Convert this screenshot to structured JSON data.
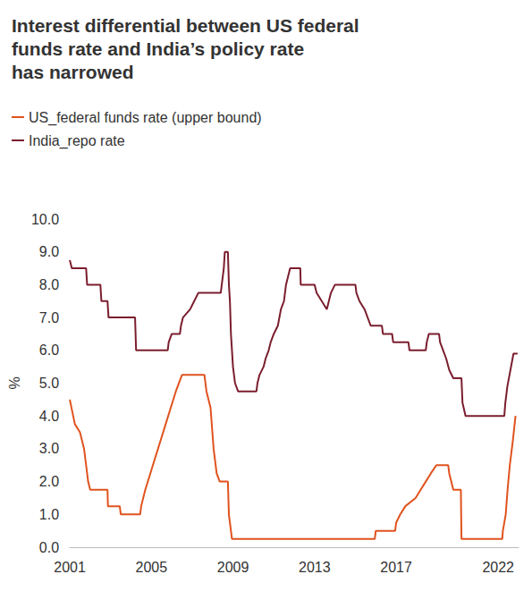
{
  "chart_data": {
    "type": "line",
    "title": "Interest differential between US federal\nfunds rate and India’s policy rate\nhas narrowed",
    "ylabel": "%",
    "xlim": [
      2001,
      2023
    ],
    "xticks": [
      2001,
      2005,
      2009,
      2013,
      2017,
      2022
    ],
    "ylim": [
      0,
      10
    ],
    "yticks": [
      {
        "value": 0,
        "label": "0.0"
      },
      {
        "value": 1,
        "label": "1.0"
      },
      {
        "value": 2,
        "label": "2.0"
      },
      {
        "value": 3,
        "label": "3.0"
      },
      {
        "value": 4,
        "label": "4.0"
      },
      {
        "value": 5,
        "label": "5.0"
      },
      {
        "value": 6,
        "label": "6.0"
      },
      {
        "value": 7,
        "label": "7.0"
      },
      {
        "value": 8,
        "label": "8.0"
      },
      {
        "value": 9,
        "label": "9.0"
      },
      {
        "value": 10,
        "label": "10.0"
      }
    ],
    "grid": false,
    "legend": "top-left",
    "series": [
      {
        "name": "US_federal funds rate (upper bound)",
        "color": "#e0531f",
        "line_style": "solid",
        "x": [
          2001.0,
          2001.25,
          2001.5,
          2001.7,
          2001.8,
          2001.9,
          2002.0,
          2002.85,
          2002.87,
          2003.45,
          2003.5,
          2004.45,
          2004.5,
          2004.7,
          2004.95,
          2005.2,
          2005.45,
          2005.7,
          2005.95,
          2006.2,
          2006.5,
          2007.6,
          2007.7,
          2007.9,
          2008.05,
          2008.2,
          2008.35,
          2008.75,
          2008.8,
          2008.95,
          2015.95,
          2016.0,
          2016.95,
          2017.0,
          2017.2,
          2017.45,
          2017.95,
          2018.2,
          2018.45,
          2018.7,
          2018.97,
          2019.55,
          2019.6,
          2019.7,
          2019.8,
          2020.17,
          2020.2,
          2022.2,
          2022.23,
          2022.37,
          2022.46,
          2022.57,
          2022.72,
          2022.85
        ],
        "values": [
          4.5,
          3.75,
          3.5,
          3.0,
          2.5,
          2.0,
          1.75,
          1.75,
          1.25,
          1.25,
          1.0,
          1.0,
          1.25,
          1.75,
          2.25,
          2.75,
          3.25,
          3.75,
          4.25,
          4.75,
          5.25,
          5.25,
          4.75,
          4.25,
          3.0,
          2.25,
          2.0,
          2.0,
          1.0,
          0.25,
          0.25,
          0.5,
          0.5,
          0.75,
          1.0,
          1.25,
          1.5,
          1.75,
          2.0,
          2.25,
          2.5,
          2.5,
          2.25,
          2.0,
          1.75,
          1.75,
          0.25,
          0.25,
          0.5,
          1.0,
          1.75,
          2.5,
          3.25,
          4.0
        ]
      },
      {
        "name": "India_repo rate",
        "color": "#7b1e2e",
        "line_style": "solid",
        "x": [
          2001.0,
          2001.1,
          2001.8,
          2001.85,
          2002.5,
          2002.55,
          2002.85,
          2002.9,
          2004.2,
          2004.25,
          2005.8,
          2005.85,
          2006.0,
          2006.4,
          2006.45,
          2006.55,
          2006.9,
          2007.1,
          2007.3,
          2008.4,
          2008.45,
          2008.55,
          2008.6,
          2008.75,
          2008.8,
          2008.85,
          2008.9,
          2009.0,
          2009.1,
          2009.25,
          2010.15,
          2010.2,
          2010.3,
          2010.5,
          2010.6,
          2010.75,
          2010.85,
          2011.0,
          2011.2,
          2011.35,
          2011.5,
          2011.6,
          2011.8,
          2012.3,
          2012.32,
          2013.0,
          2013.1,
          2013.35,
          2013.6,
          2013.7,
          2013.8,
          2014.0,
          2015.0,
          2015.05,
          2015.2,
          2015.45,
          2015.75,
          2016.3,
          2016.35,
          2016.8,
          2016.85,
          2017.6,
          2017.65,
          2018.45,
          2018.5,
          2018.6,
          2019.1,
          2019.15,
          2019.3,
          2019.45,
          2019.6,
          2019.8,
          2020.2,
          2020.25,
          2020.4,
          2022.3,
          2022.35,
          2022.45,
          2022.6,
          2022.75,
          2022.95
        ],
        "values": [
          8.75,
          8.5,
          8.5,
          8.0,
          8.0,
          7.5,
          7.5,
          7.0,
          7.0,
          6.0,
          6.0,
          6.25,
          6.5,
          6.5,
          6.75,
          7.0,
          7.25,
          7.5,
          7.75,
          7.75,
          8.0,
          8.5,
          9.0,
          9.0,
          8.0,
          7.5,
          6.5,
          5.5,
          5.0,
          4.75,
          4.75,
          5.0,
          5.25,
          5.5,
          5.75,
          6.0,
          6.25,
          6.5,
          6.75,
          7.25,
          7.5,
          8.0,
          8.5,
          8.5,
          8.0,
          8.0,
          7.75,
          7.5,
          7.25,
          7.5,
          7.75,
          8.0,
          8.0,
          7.75,
          7.5,
          7.25,
          6.75,
          6.75,
          6.5,
          6.5,
          6.25,
          6.25,
          6.0,
          6.0,
          6.25,
          6.5,
          6.5,
          6.25,
          6.0,
          5.75,
          5.4,
          5.15,
          5.15,
          4.4,
          4.0,
          4.0,
          4.4,
          4.9,
          5.4,
          5.9,
          5.9
        ]
      }
    ]
  }
}
